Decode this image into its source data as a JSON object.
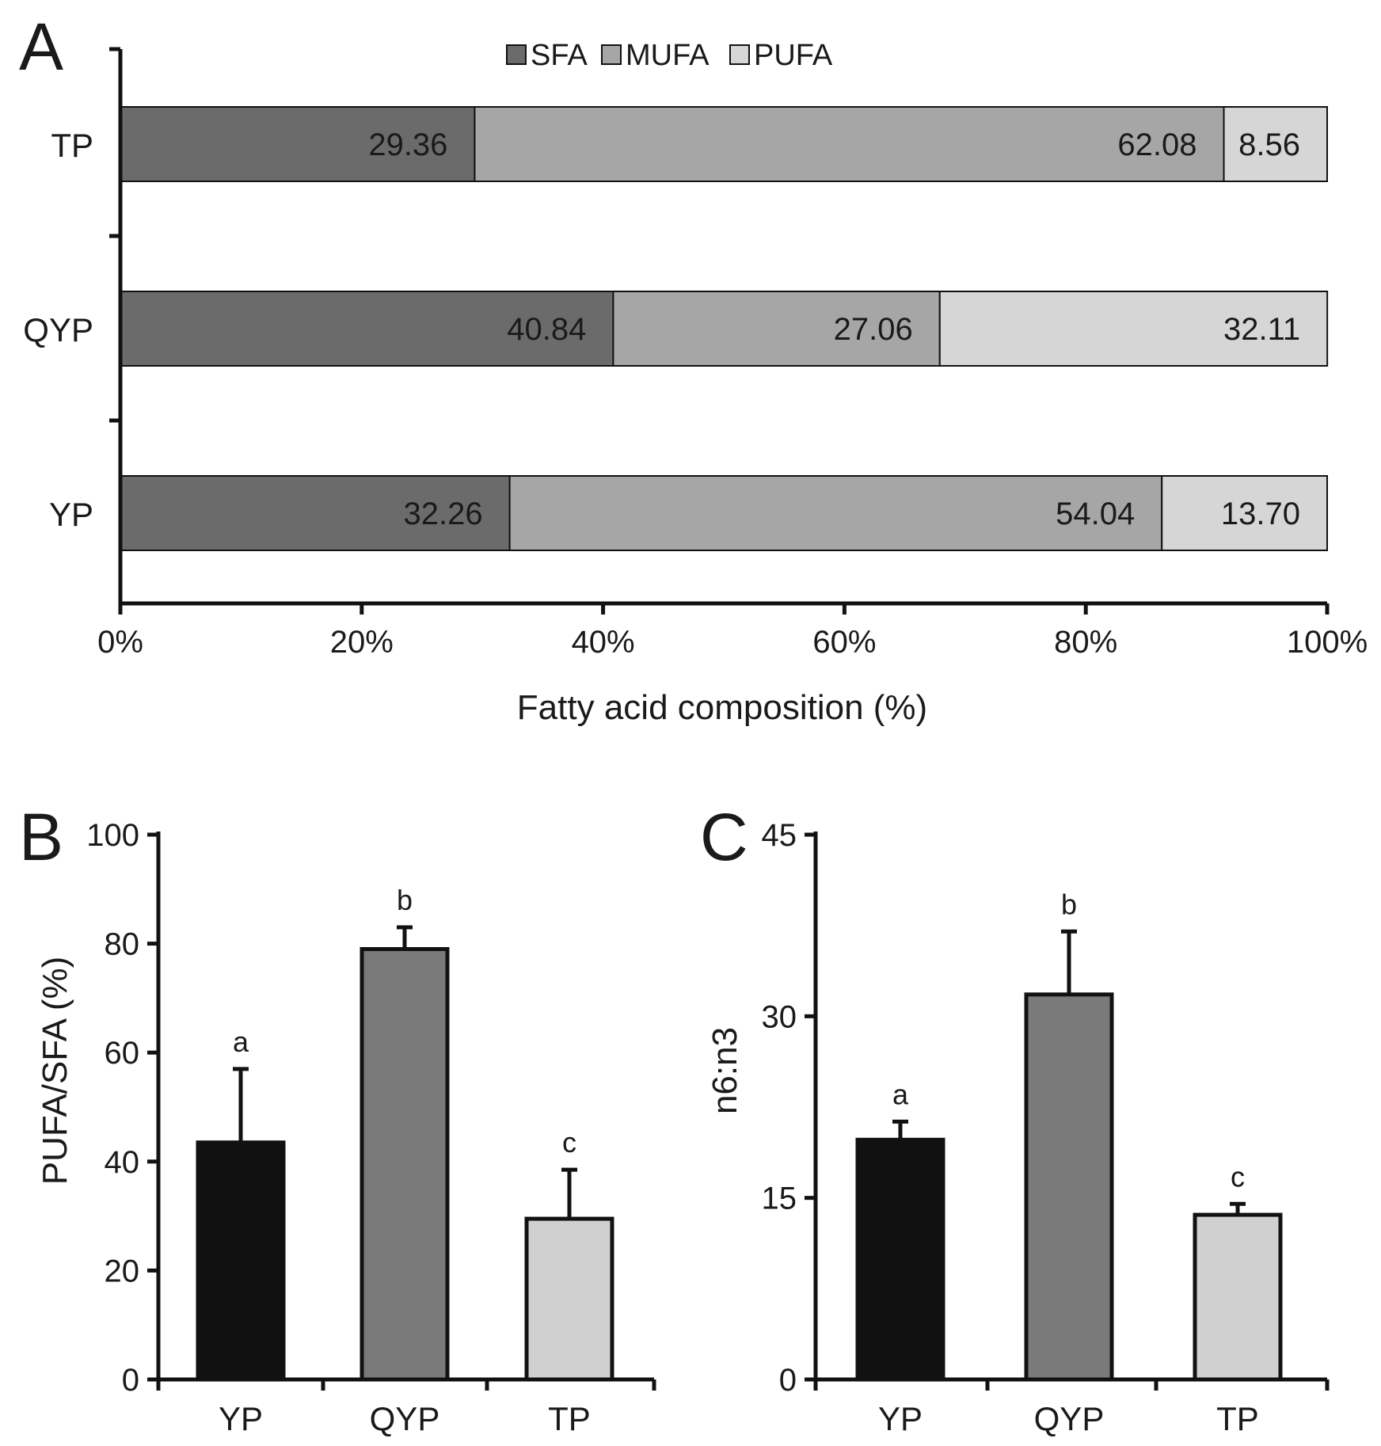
{
  "chart_data": [
    {
      "panel": "A",
      "type": "bar",
      "orientation": "horizontal",
      "stacked": true,
      "categories": [
        "TP",
        "QYP",
        "YP"
      ],
      "series": [
        {
          "name": "SFA",
          "color": "#6b6b6b",
          "values": [
            29.36,
            40.84,
            32.26
          ],
          "labels": [
            "29.36",
            "40.84",
            "32.26"
          ]
        },
        {
          "name": "MUFA",
          "color": "#a6a6a6",
          "values": [
            62.08,
            27.06,
            54.04
          ],
          "labels": [
            "62.08",
            "27.06",
            "54.04"
          ]
        },
        {
          "name": "PUFA",
          "color": "#d6d6d6",
          "values": [
            8.56,
            32.11,
            13.7
          ],
          "labels": [
            "8.56",
            "32.11",
            "13.70"
          ]
        }
      ],
      "xlabel": "Fatty acid composition (%)",
      "xlim": [
        0,
        100
      ],
      "xticks": [
        0,
        20,
        40,
        60,
        80,
        100
      ],
      "xtick_labels": [
        "0%",
        "20%",
        "40%",
        "60%",
        "80%",
        "100%"
      ],
      "legend": "top-center"
    },
    {
      "panel": "B",
      "type": "bar",
      "categories": [
        "YP",
        "QYP",
        "TP"
      ],
      "values": [
        43.5,
        79,
        29.5
      ],
      "errors": [
        13.5,
        4,
        9
      ],
      "significance": [
        "a",
        "b",
        "c"
      ],
      "colors": [
        "#111111",
        "#7a7a7a",
        "#d0d0d0"
      ],
      "ylabel": "PUFA/SFA (%)",
      "ylim": [
        0,
        100
      ],
      "yticks": [
        0,
        20,
        40,
        60,
        80,
        100
      ],
      "ytick_labels": [
        "0",
        "20",
        "40",
        "60",
        "80",
        "100"
      ]
    },
    {
      "panel": "C",
      "type": "bar",
      "categories": [
        "YP",
        "QYP",
        "TP"
      ],
      "values": [
        19.8,
        31.8,
        13.6
      ],
      "errors": [
        1.5,
        5.2,
        0.9
      ],
      "significance": [
        "a",
        "b",
        "c"
      ],
      "colors": [
        "#111111",
        "#7a7a7a",
        "#d0d0d0"
      ],
      "ylabel": "n6:n3",
      "ylim": [
        0,
        45
      ],
      "yticks": [
        0,
        15,
        30,
        45
      ],
      "ytick_labels": [
        "0",
        "15",
        "30",
        "45"
      ]
    }
  ]
}
